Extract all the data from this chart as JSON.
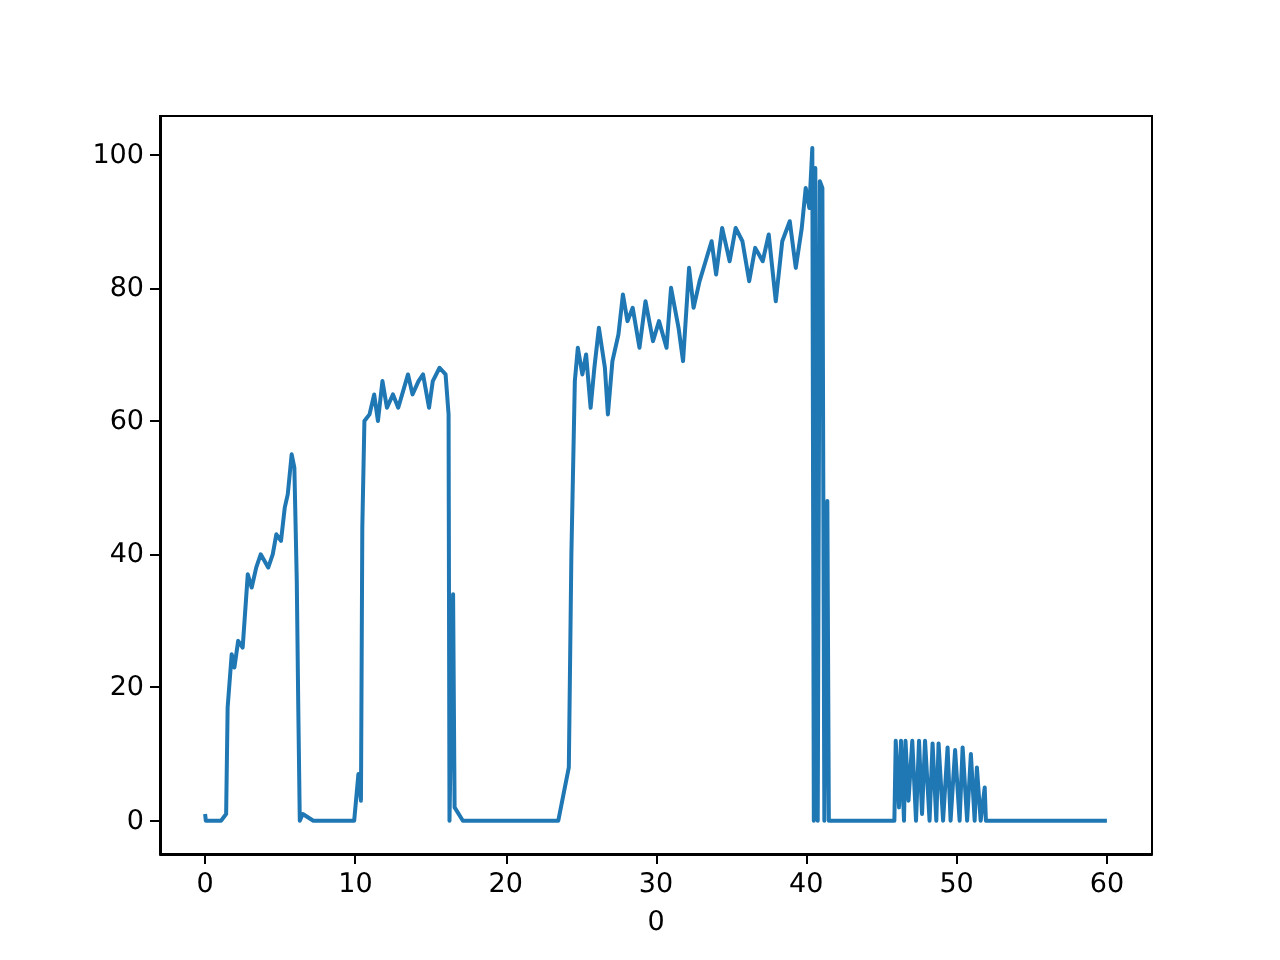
{
  "chart_data": {
    "type": "line",
    "xlabel": "0",
    "x": [
      0,
      0.05,
      1.06,
      1.4,
      1.5,
      1.77,
      1.95,
      2.2,
      2.5,
      2.84,
      3.1,
      3.4,
      3.7,
      4.2,
      4.5,
      4.74,
      5.05,
      5.3,
      5.5,
      5.76,
      5.94,
      6.1,
      6.2,
      6.3,
      6.5,
      7.2,
      9.92,
      10.2,
      10.37,
      10.46,
      10.6,
      10.94,
      11.25,
      11.5,
      11.8,
      12.1,
      12.5,
      12.85,
      13.5,
      13.8,
      14.2,
      14.5,
      14.9,
      15.15,
      15.6,
      16.0,
      16.2,
      16.26,
      16.5,
      16.6,
      17.15,
      23.5,
      24.2,
      24.37,
      24.6,
      24.8,
      25.1,
      25.35,
      25.65,
      25.9,
      26.2,
      26.6,
      26.8,
      27.1,
      27.5,
      27.8,
      28.1,
      28.45,
      28.9,
      29.3,
      29.8,
      30.2,
      30.7,
      31.0,
      31.5,
      31.8,
      32.2,
      32.5,
      32.9,
      33.3,
      33.7,
      34.0,
      34.4,
      34.9,
      35.3,
      35.75,
      36.2,
      36.6,
      37.1,
      37.5,
      37.97,
      38.4,
      38.9,
      39.3,
      39.7,
      39.96,
      40.2,
      40.4,
      40.5,
      40.6,
      40.76,
      40.9,
      41.07,
      41.2,
      41.4,
      41.5,
      45.86,
      45.95,
      46.17,
      46.3,
      46.5,
      46.6,
      46.8,
      47.05,
      47.3,
      47.5,
      47.7,
      47.9,
      48.2,
      48.4,
      48.65,
      48.8,
      49.1,
      49.4,
      49.6,
      49.9,
      50.2,
      50.4,
      50.7,
      50.95,
      51.2,
      51.35,
      51.6,
      51.87,
      51.95,
      60
    ],
    "values": [
      1,
      0,
      0,
      1,
      17,
      25,
      23,
      27,
      26,
      37,
      35,
      38,
      40,
      38,
      40,
      43,
      42,
      47,
      49,
      55,
      53,
      36,
      17,
      0,
      1,
      0,
      0,
      7,
      3,
      44,
      60,
      61,
      64,
      60,
      66,
      62,
      64,
      62,
      67,
      64,
      66,
      67,
      62,
      66,
      68,
      67,
      61,
      0,
      34,
      2,
      0,
      0,
      8,
      40,
      66,
      71,
      67,
      70,
      62,
      68,
      74,
      68,
      61,
      69,
      73,
      79,
      75,
      77,
      71,
      78,
      72,
      75,
      71,
      80,
      74,
      69,
      83,
      77,
      81,
      84,
      87,
      82,
      89,
      84,
      89,
      87,
      81,
      86,
      84,
      88,
      78,
      87,
      90,
      83,
      89,
      95,
      92,
      101,
      0,
      98,
      0,
      96,
      95,
      0,
      48,
      0,
      0,
      12,
      2,
      12,
      0,
      12,
      3,
      12,
      0,
      12,
      1,
      12,
      0,
      11.6,
      0,
      11.6,
      0,
      11,
      0,
      10.6,
      0,
      11,
      0,
      10,
      0,
      8,
      0,
      5,
      0,
      0
    ],
    "color": "#1f77b4",
    "xlim": [
      -3,
      63
    ],
    "ylim": [
      -5,
      105.8
    ],
    "xticks": [
      0,
      10,
      20,
      30,
      40,
      50,
      60
    ],
    "yticks": [
      0,
      20,
      40,
      60,
      80,
      100
    ],
    "grid": false,
    "marker": "none",
    "line_style": "solid"
  }
}
